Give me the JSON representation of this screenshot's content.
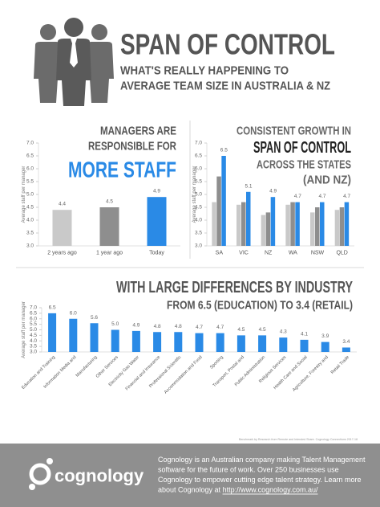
{
  "header": {
    "title": "SPAN OF CONTROL",
    "subtitle": [
      "WHAT'S REALLY HAPPENING TO",
      "AVERAGE TEAM SIZE IN AUSTRALIA & NZ"
    ]
  },
  "chart_data": [
    {
      "type": "bar",
      "title": [
        "MANAGERS ARE",
        "RESPONSIBLE FOR",
        "MORE STAFF"
      ],
      "ylabel": "Average staff per manager",
      "categories": [
        "2 years ago",
        "1 year ago",
        "Today"
      ],
      "values": [
        4.4,
        4.5,
        4.9
      ],
      "colors": [
        "#c9c9c9",
        "#8e8e8e",
        "#2a8ae6"
      ],
      "ylim": [
        3,
        7
      ],
      "yticks": [
        {
          "value": 3,
          "label": "3.0"
        },
        {
          "value": 3.5,
          "label": "3.5"
        },
        {
          "value": 4,
          "label": "4.0"
        },
        {
          "value": 4.5,
          "label": "4.5"
        },
        {
          "value": 5,
          "label": "5.0"
        },
        {
          "value": 5.5,
          "label": "5.5"
        },
        {
          "value": 6,
          "label": "6.0"
        },
        {
          "value": 6.5,
          "label": "6.5"
        },
        {
          "value": 7,
          "label": "7.0"
        }
      ],
      "grid": false
    },
    {
      "type": "grouped_bar",
      "title": [
        "CONSISTENT GROWTH IN",
        "SPAN OF CONTROL",
        "ACROSS THE STATES",
        "(AND NZ)"
      ],
      "ylabel": "Average staff per manager",
      "categories": [
        "SA",
        "VIC",
        "NZ",
        "WA",
        "NSW",
        "QLD"
      ],
      "series": [
        {
          "color": "#c9c9c9",
          "values": [
            4.7,
            4.6,
            4.2,
            4.6,
            4.3,
            4.4
          ]
        },
        {
          "color": "#8e8e8e",
          "values": [
            5.7,
            4.7,
            4.3,
            4.7,
            4.5,
            4.5
          ]
        },
        {
          "color": "#2a8ae6",
          "values": [
            6.5,
            5.1,
            4.9,
            4.7,
            4.7,
            4.7
          ],
          "show_value_labels": true
        }
      ],
      "ylim": [
        3,
        7
      ],
      "yticks": [
        {
          "value": 3,
          "label": "3.0"
        },
        {
          "value": 3.5,
          "label": "3.5"
        },
        {
          "value": 4,
          "label": "4.0"
        },
        {
          "value": 4.5,
          "label": "4.5"
        },
        {
          "value": 5,
          "label": "5.0"
        },
        {
          "value": 5.5,
          "label": "5.5"
        },
        {
          "value": 6,
          "label": "6.0"
        },
        {
          "value": 6.5,
          "label": "6.5"
        },
        {
          "value": 7,
          "label": "7.0"
        }
      ],
      "grid": false
    },
    {
      "type": "bar",
      "title": [
        "WITH LARGE DIFFERENCES BY INDUSTRY",
        "FROM 6.5 (EDUCATION) TO 3.4 (RETAIL)"
      ],
      "ylabel": "Average staff per manager",
      "categories": [
        "Education and Training",
        "Information Media and",
        "Manufacturing",
        "Other Services",
        "Electricity Gas Water",
        "Financial and Insurance",
        "Professional Scientific",
        "Accommodation and Food",
        "Sporting",
        "Transport, Postal and",
        "Public Administration",
        "Religious Services",
        "Health Care and Social",
        "Agriculture, Forestry and",
        "Retail Trade"
      ],
      "values": [
        6.5,
        6.0,
        5.6,
        5.0,
        4.9,
        4.8,
        4.8,
        4.7,
        4.7,
        4.5,
        4.5,
        4.3,
        4.1,
        3.9,
        3.4
      ],
      "value_labels": [
        "6.5",
        "6.0",
        "5.6",
        "5.0",
        "4.9",
        "4.8",
        "4.8",
        "4.7",
        "4.7",
        "4.5",
        "4.5",
        "4.3",
        "4.1",
        "3.9",
        "3.4"
      ],
      "color": "#2a8ae6",
      "ylim": [
        3,
        7
      ],
      "yticks": [
        {
          "value": 3,
          "label": "3.0"
        },
        {
          "value": 3.5,
          "label": "3.5"
        },
        {
          "value": 4,
          "label": "4.0"
        },
        {
          "value": 4.5,
          "label": "4.5"
        },
        {
          "value": 5,
          "label": "5.0"
        },
        {
          "value": 5.5,
          "label": "5.5"
        },
        {
          "value": 6,
          "label": "6.0"
        },
        {
          "value": 6.5,
          "label": "6.5"
        },
        {
          "value": 7,
          "label": "7.0"
        }
      ],
      "grid": false
    }
  ],
  "source": "Benchmark by Research from Remote and Intended Share. Cognology Connections 2017-18",
  "footer": {
    "logo": "cognology",
    "text": [
      "Cognology is an Australian company making Talent Management",
      "software for the future of work.  Over 250 businesses use",
      "Cognology to empower cutting edge talent strategy. Learn more",
      "about Cognology at "
    ],
    "link": "http://www.cognology.com.au/"
  }
}
